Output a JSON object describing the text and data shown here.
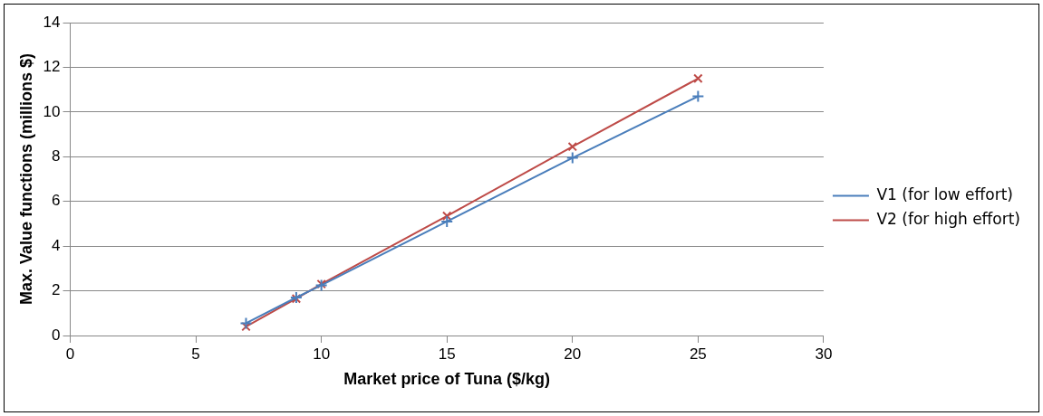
{
  "chart_data": {
    "type": "line",
    "xlabel": "Market price of Tuna ($/kg)",
    "ylabel": "Max. Value functions (millions $)",
    "x": [
      7,
      9,
      10,
      15,
      20,
      25
    ],
    "series": [
      {
        "name": "V1 (for low effort)",
        "color": "#4a7ebb",
        "marker": "cross",
        "values": [
          0.55,
          1.7,
          2.25,
          5.1,
          7.95,
          10.7
        ]
      },
      {
        "name": "V2 (for high effort)",
        "color": "#be4b48",
        "marker": "x",
        "values": [
          0.4,
          1.65,
          2.3,
          5.35,
          8.45,
          11.5
        ]
      }
    ],
    "xlim": [
      0,
      30
    ],
    "xticks": [
      0,
      5,
      10,
      15,
      20,
      25,
      30
    ],
    "ylim": [
      0,
      14
    ],
    "yticks": [
      0,
      2,
      4,
      6,
      8,
      10,
      12,
      14
    ],
    "grid": "y",
    "legend": "right",
    "line_style": "solid"
  }
}
